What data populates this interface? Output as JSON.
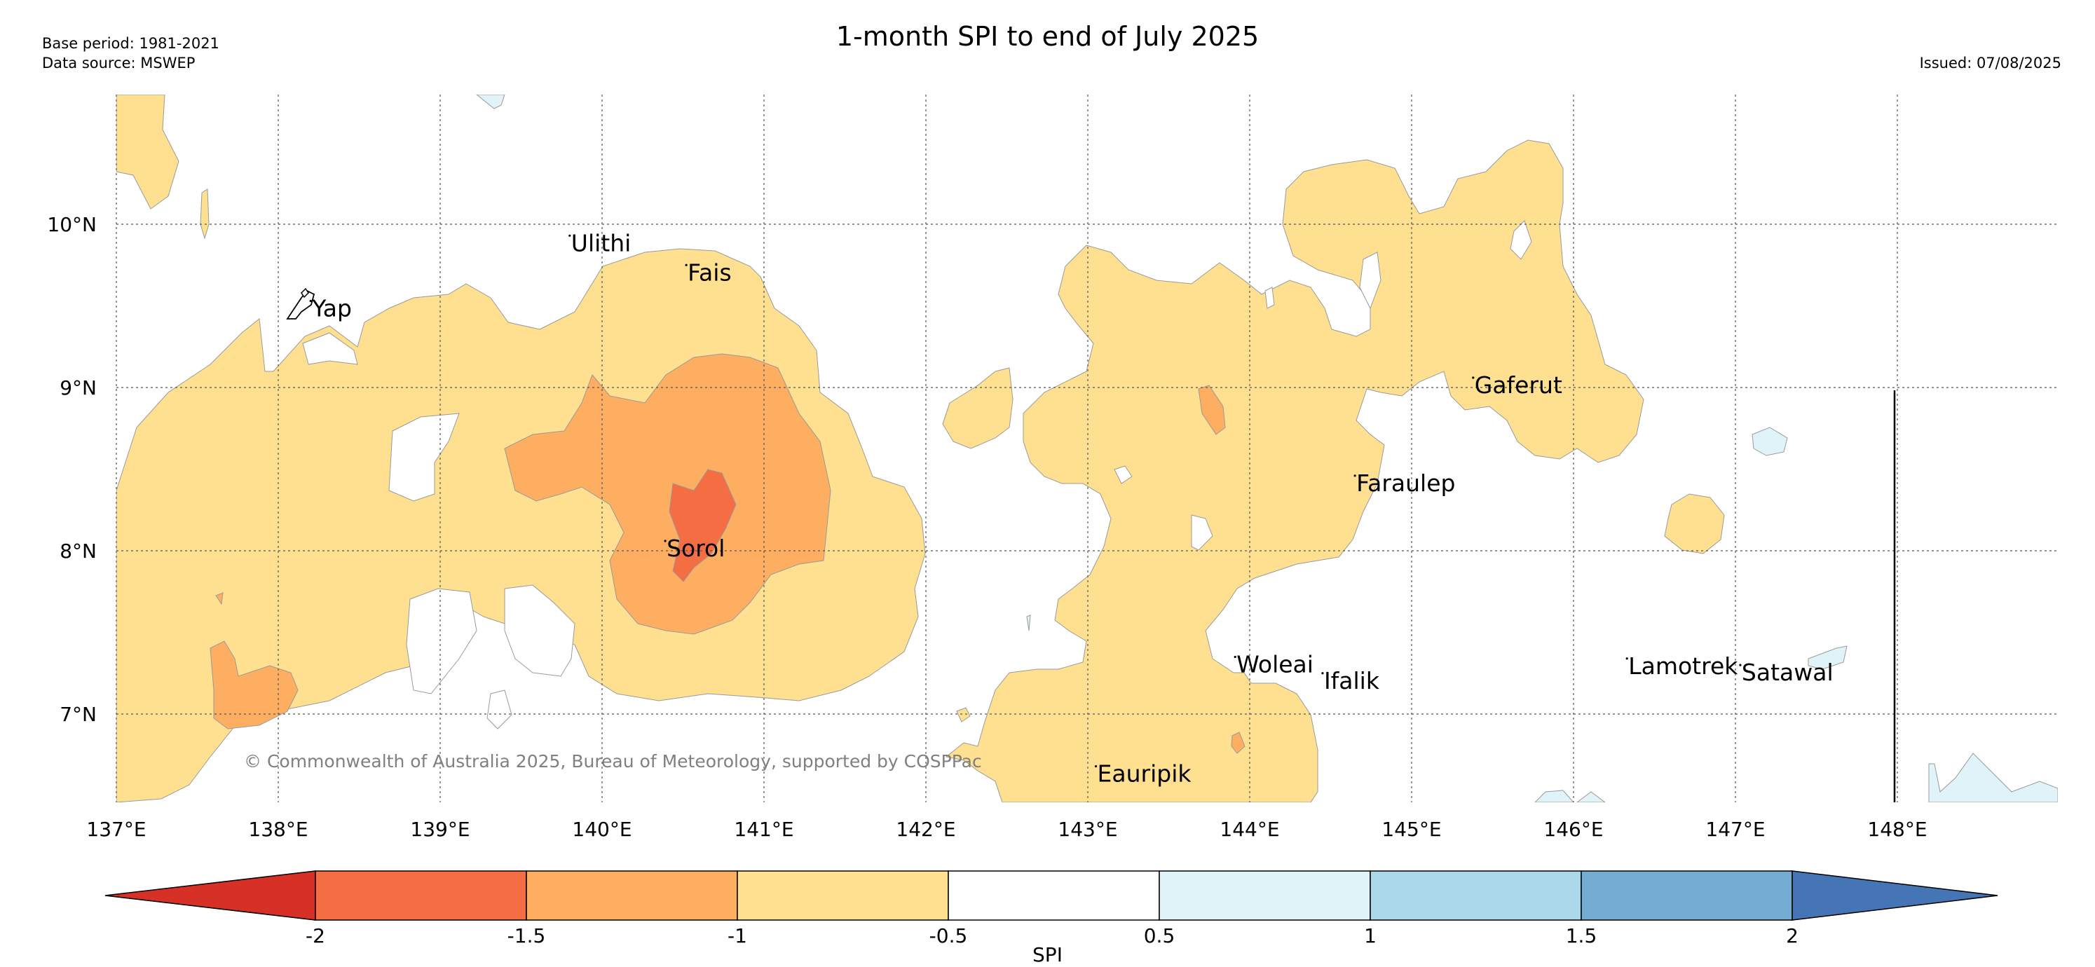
{
  "header": {
    "title": "1-month SPI to end of July 2025",
    "base_period": "Base period: 1981-2021",
    "data_source": "Data source: MSWEP",
    "issued": "Issued: 07/08/2025"
  },
  "map": {
    "lon_ticks": [
      "137°E",
      "138°E",
      "139°E",
      "140°E",
      "141°E",
      "142°E",
      "143°E",
      "144°E",
      "145°E",
      "146°E",
      "147°E",
      "148°E"
    ],
    "lat_ticks": [
      "10°N",
      "9°N",
      "8°N",
      "7°N"
    ],
    "places": [
      {
        "name": "Ulithi",
        "lon": 139.8,
        "lat": 9.93
      },
      {
        "name": "Fais",
        "lon": 140.52,
        "lat": 9.75
      },
      {
        "name": "Yap",
        "lon": 138.2,
        "lat": 9.53
      },
      {
        "name": "Gaferut",
        "lon": 145.38,
        "lat": 9.06
      },
      {
        "name": "Faraulep",
        "lon": 144.65,
        "lat": 8.46
      },
      {
        "name": "Sorol",
        "lon": 140.39,
        "lat": 8.06
      },
      {
        "name": "Woleai",
        "lon": 143.91,
        "lat": 7.35
      },
      {
        "name": "Ifalik",
        "lon": 144.45,
        "lat": 7.25
      },
      {
        "name": "Lamotrek",
        "lon": 146.33,
        "lat": 7.34
      },
      {
        "name": "Satawal",
        "lon": 147.03,
        "lat": 7.3
      },
      {
        "name": "Eauripik",
        "lon": 143.05,
        "lat": 6.68
      }
    ],
    "copyright": "© Commonwealth of Australia 2025, Bureau of Meteorology, supported by COSPPac",
    "colors": {
      "very_dry": "#d73027",
      "dry_strong": "#f46d43",
      "dry_moderate": "#fdae61",
      "dry_mild": "#fee090",
      "near_normal": "#ffffff",
      "wet_mild": "#e0f3f8",
      "wet_moderate": "#abd9e9",
      "wet_strong": "#74add1",
      "very_wet": "#4575b4"
    }
  },
  "colorbar": {
    "label": "SPI",
    "ticks": [
      "-2",
      "-1.5",
      "-1",
      "-0.5",
      "0.5",
      "1",
      "1.5",
      "2"
    ],
    "colors": [
      "#d73027",
      "#f46d43",
      "#fdae61",
      "#fee090",
      "#ffffff",
      "#e0f3f8",
      "#abd9e9",
      "#74add1",
      "#4575b4"
    ]
  }
}
